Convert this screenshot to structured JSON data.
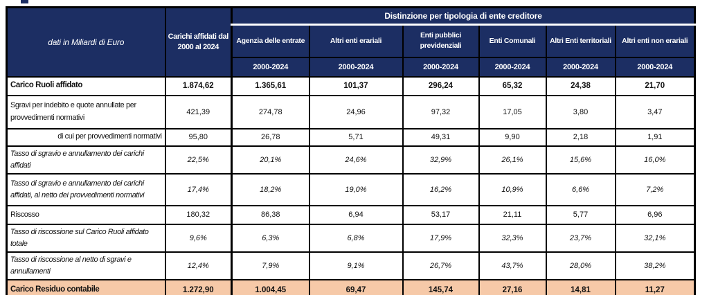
{
  "table": {
    "corner_label": "dati in Miliardi di Euro",
    "total_col_header": "Carichi affidati dal 2000 al 2024",
    "group_header": "Distinzione per tipologia di ente creditore",
    "entity_columns": [
      "Agenzia delle entrate",
      "Altri enti erariali",
      "Enti pubblici previdenziali",
      "Enti Comunali",
      "Altri Enti territoriali",
      "Altri enti non erariali"
    ],
    "period_label": "2000-2024",
    "rows": [
      {
        "label": "Carico Ruoli affidato",
        "style": "bold",
        "values": [
          "1.874,62",
          "1.365,61",
          "101,37",
          "296,24",
          "65,32",
          "24,38",
          "21,70"
        ]
      },
      {
        "label": "Sgravi per indebito e quote annullate per provvedimenti normativi",
        "style": "normal",
        "values": [
          "421,39",
          "274,78",
          "24,96",
          "97,32",
          "17,05",
          "3,80",
          "3,47"
        ]
      },
      {
        "label": "di cui per provvedimenti normativi",
        "style": "indent-right",
        "values": [
          "95,80",
          "26,78",
          "5,71",
          "49,31",
          "9,90",
          "2,18",
          "1,91"
        ]
      },
      {
        "label": "Tasso di sgravio e annullamento dei carichi affidati",
        "style": "italic",
        "values": [
          "22,5%",
          "20,1%",
          "24,6%",
          "32,9%",
          "26,1%",
          "15,6%",
          "16,0%"
        ]
      },
      {
        "label": "Tasso di sgravio e annullamento dei carichi affidati, al netto dei provvedimenti normativi",
        "style": "italic",
        "values": [
          "17,4%",
          "18,2%",
          "19,0%",
          "16,2%",
          "10,9%",
          "6,6%",
          "7,2%"
        ]
      },
      {
        "label": "Riscosso",
        "style": "normal",
        "values": [
          "180,32",
          "86,38",
          "6,94",
          "53,17",
          "21,11",
          "5,77",
          "6,96"
        ]
      },
      {
        "label": "Tasso di riscossione sul Carico Ruoli affidato totale",
        "style": "italic",
        "values": [
          "9,6%",
          "6,3%",
          "6,8%",
          "17,9%",
          "32,3%",
          "23,7%",
          "32,1%"
        ]
      },
      {
        "label": "Tasso di riscossione al netto di sgravi e annullamenti",
        "style": "italic",
        "values": [
          "12,4%",
          "7,9%",
          "9,1%",
          "26,7%",
          "43,7%",
          "28,0%",
          "38,2%"
        ]
      },
      {
        "label": "Carico Residuo contabile",
        "style": "total",
        "values": [
          "1.272,90",
          "1.004,45",
          "69,47",
          "145,74",
          "27,16",
          "14,81",
          "11,27"
        ]
      }
    ]
  },
  "colors": {
    "header_bg": "#1c2e63",
    "header_text": "#ffffff",
    "total_row_bg": "#f6c9a8",
    "border": "#000000"
  },
  "chart_data": {
    "type": "table",
    "title": "Distinzione per tipologia di ente creditore",
    "unit": "dati in Miliardi di Euro",
    "period": "2000-2024",
    "categories": [
      "Carichi affidati dal 2000 al 2024",
      "Agenzia delle entrate",
      "Altri enti erariali",
      "Enti pubblici previdenziali",
      "Enti Comunali",
      "Altri Enti territoriali",
      "Altri enti non erariali"
    ],
    "series": [
      {
        "name": "Carico Ruoli affidato",
        "values": [
          1874.62,
          1365.61,
          101.37,
          296.24,
          65.32,
          24.38,
          21.7
        ]
      },
      {
        "name": "Sgravi per indebito e quote annullate per provvedimenti normativi",
        "values": [
          421.39,
          274.78,
          24.96,
          97.32,
          17.05,
          3.8,
          3.47
        ]
      },
      {
        "name": "di cui per provvedimenti normativi",
        "values": [
          95.8,
          26.78,
          5.71,
          49.31,
          9.9,
          2.18,
          1.91
        ]
      },
      {
        "name": "Tasso di sgravio e annullamento dei carichi affidati (%)",
        "values": [
          22.5,
          20.1,
          24.6,
          32.9,
          26.1,
          15.6,
          16.0
        ]
      },
      {
        "name": "Tasso di sgravio e annullamento dei carichi affidati, al netto dei provvedimenti normativi (%)",
        "values": [
          17.4,
          18.2,
          19.0,
          16.2,
          10.9,
          6.6,
          7.2
        ]
      },
      {
        "name": "Riscosso",
        "values": [
          180.32,
          86.38,
          6.94,
          53.17,
          21.11,
          5.77,
          6.96
        ]
      },
      {
        "name": "Tasso di riscossione sul Carico Ruoli affidato totale (%)",
        "values": [
          9.6,
          6.3,
          6.8,
          17.9,
          32.3,
          23.7,
          32.1
        ]
      },
      {
        "name": "Tasso di riscossione al netto di sgravi e annullamenti (%)",
        "values": [
          12.4,
          7.9,
          9.1,
          26.7,
          43.7,
          28.0,
          38.2
        ]
      },
      {
        "name": "Carico Residuo contabile",
        "values": [
          1272.9,
          1004.45,
          69.47,
          145.74,
          27.16,
          14.81,
          11.27
        ]
      }
    ]
  }
}
